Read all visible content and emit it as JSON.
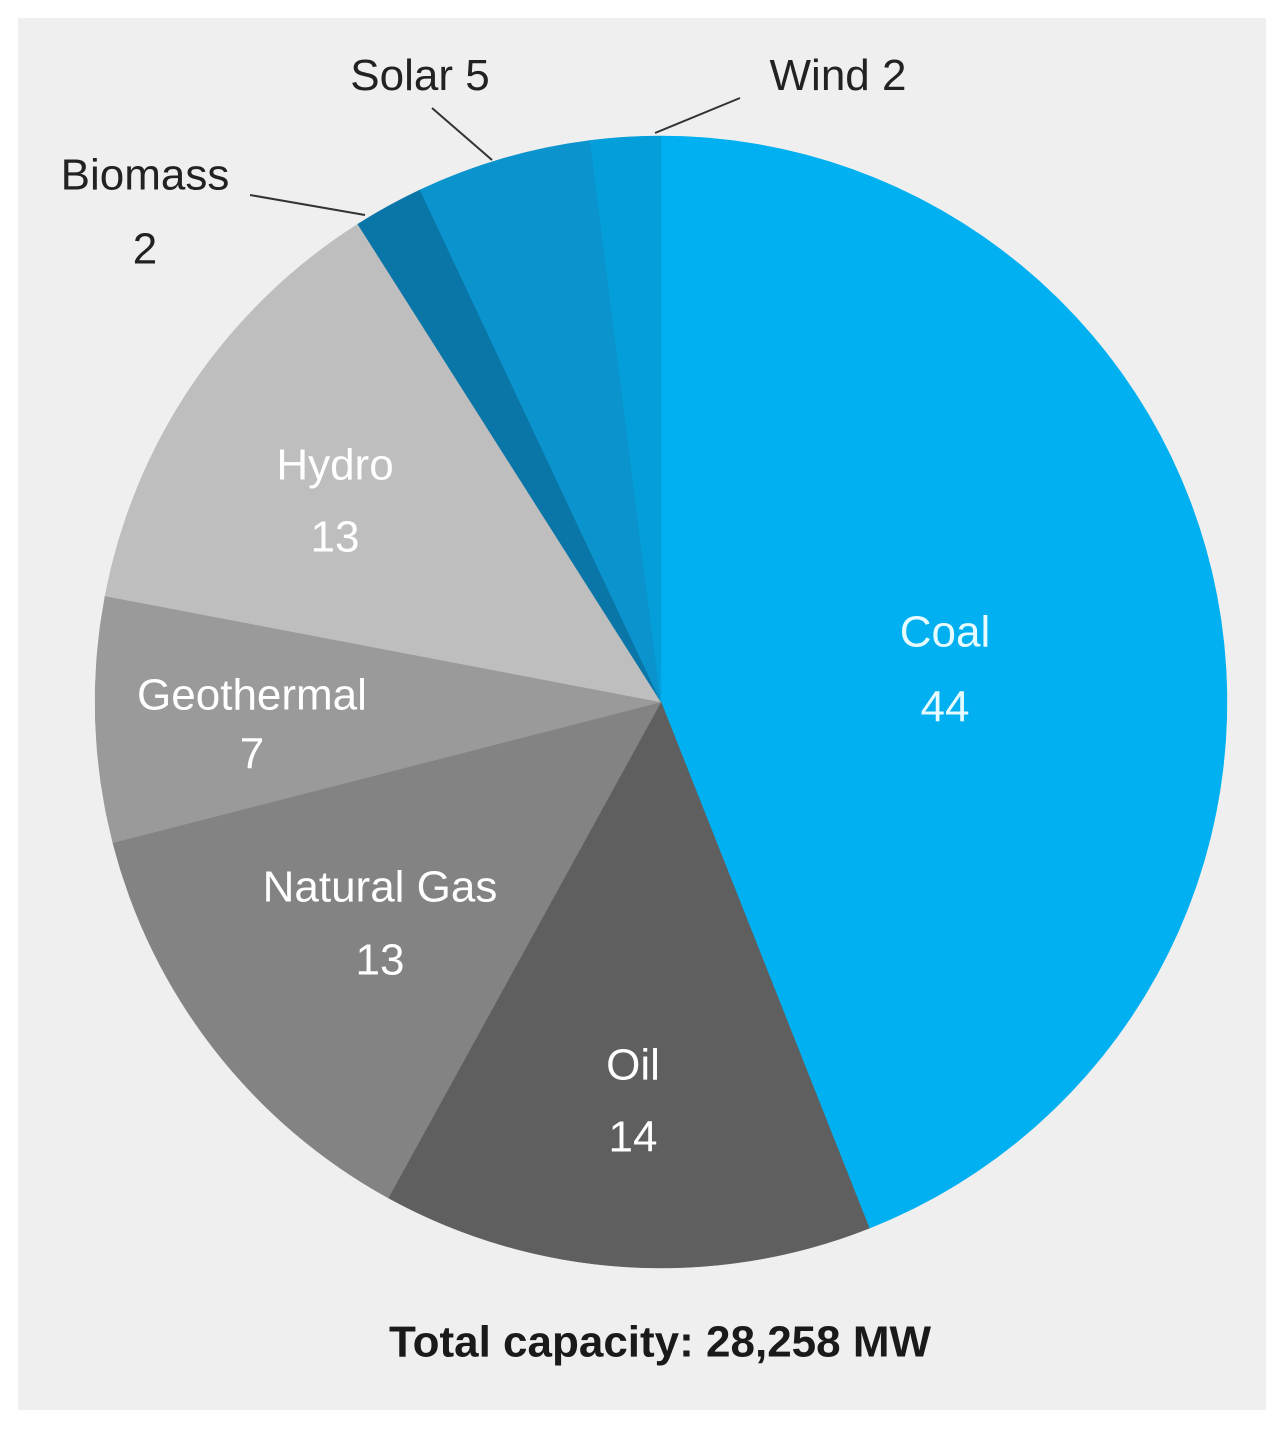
{
  "chart_data": {
    "type": "pie",
    "categories": [
      "Coal",
      "Oil",
      "Natural Gas",
      "Geothermal",
      "Hydro",
      "Biomass",
      "Solar",
      "Wind"
    ],
    "values": [
      44,
      14,
      13,
      7,
      13,
      2,
      5,
      2
    ],
    "colors": [
      "#00b0f0",
      "#5f5f5f",
      "#838383",
      "#9a9a9a",
      "#bebebe",
      "#0a76a8",
      "#0a93cc",
      "#049fda"
    ],
    "annotation": "Total capacity: 28,258 MW"
  }
}
